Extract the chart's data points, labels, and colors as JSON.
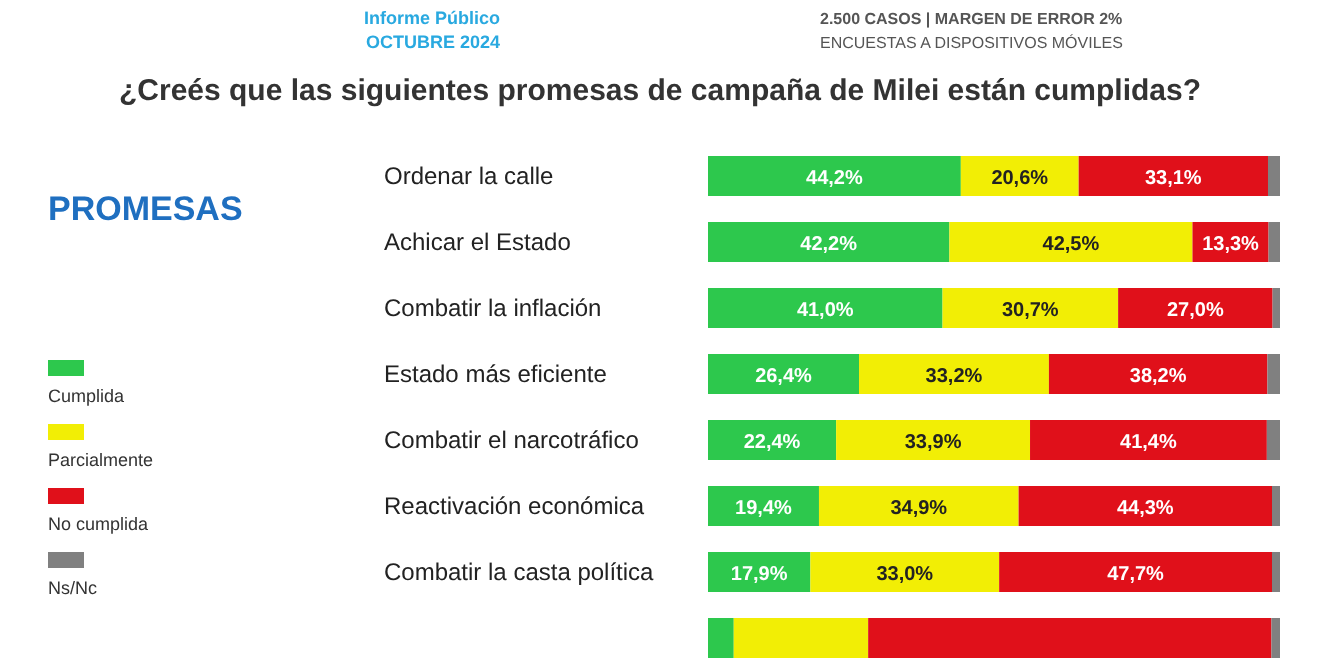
{
  "chart_data": {
    "type": "bar",
    "orientation": "horizontal",
    "stacked": true,
    "title": "¿Creés que las siguientes promesas de campaña de Milei están cumplidas?",
    "annotations": [
      "Informe Público",
      "OCTUBRE 2024",
      "2.500 CASOS | MARGEN DE ERROR 2%",
      "ENCUESTAS A DISPOSITIVOS MÓVILES"
    ],
    "legend_title": "PROMESAS",
    "legend": "left",
    "categories": [
      "Ordenar la calle",
      "Achicar el Estado",
      "Combatir la inflación",
      "Estado más eficiente",
      "Combatir el narcotráfico",
      "Reactivación económica",
      "Combatir la casta política",
      null
    ],
    "series": [
      {
        "name": "Cumplida",
        "color": "#2dc84d",
        "values": [
          44.2,
          42.2,
          41.0,
          26.4,
          22.4,
          19.4,
          17.9,
          4.5
        ],
        "value_labels": [
          "44,2%",
          "42,2%",
          "41,0%",
          "26,4%",
          "22,4%",
          "19,4%",
          "17,9%",
          null
        ]
      },
      {
        "name": "Parcialmente",
        "color": "#f2ee05",
        "values": [
          20.6,
          42.5,
          30.7,
          33.2,
          33.9,
          34.9,
          33.0,
          23.5
        ],
        "value_labels": [
          "20,6%",
          "42,5%",
          "30,7%",
          "33,2%",
          "33,9%",
          "34,9%",
          "33,0%",
          null
        ]
      },
      {
        "name": "No cumplida",
        "color": "#e0101a",
        "values": [
          33.1,
          13.3,
          27.0,
          38.2,
          41.4,
          44.3,
          47.7,
          70.5
        ],
        "value_labels": [
          "33,1%",
          "13,3%",
          "27,0%",
          "38,2%",
          "41,4%",
          "44,3%",
          "47,7%",
          null
        ]
      },
      {
        "name": "Ns/Nc",
        "color": "#808080",
        "values": [
          2.1,
          2.0,
          1.3,
          2.2,
          2.3,
          1.4,
          1.4,
          1.5
        ]
      }
    ]
  }
}
